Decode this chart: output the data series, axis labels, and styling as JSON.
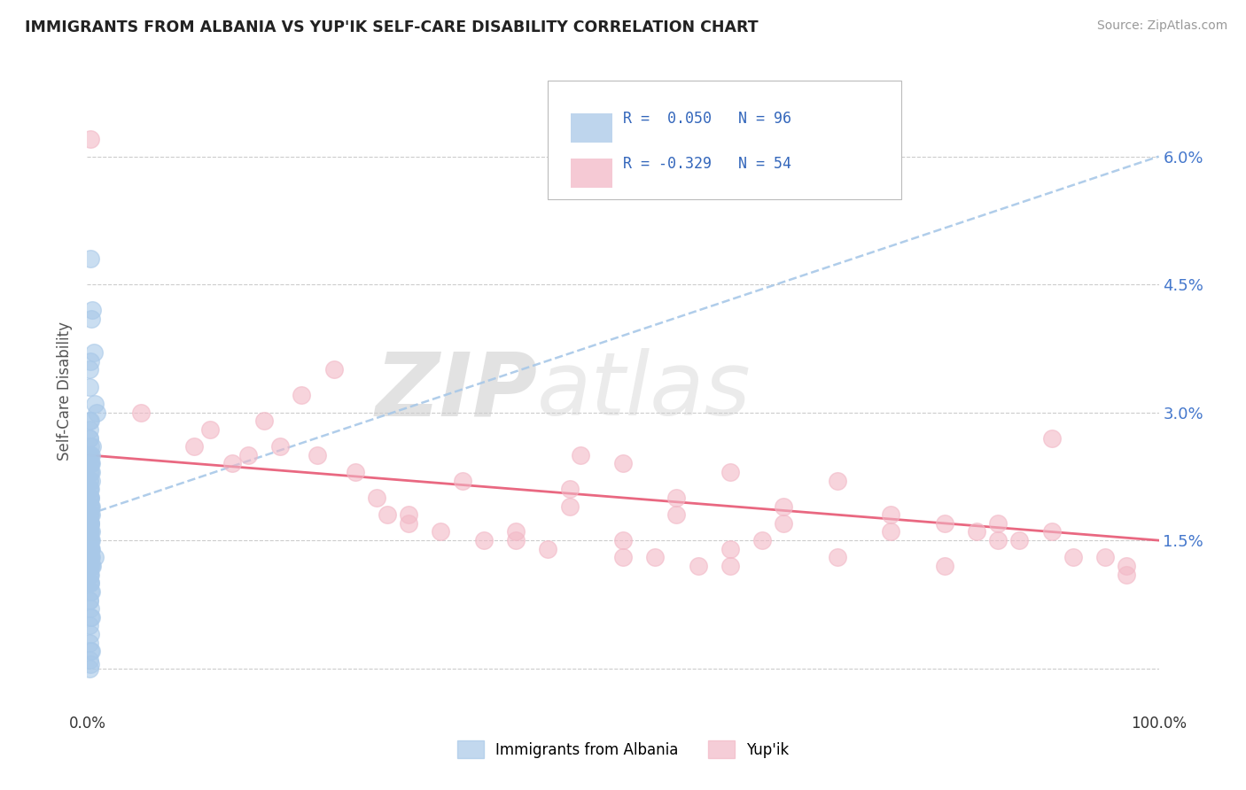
{
  "title": "IMMIGRANTS FROM ALBANIA VS YUP'IK SELF-CARE DISABILITY CORRELATION CHART",
  "source": "Source: ZipAtlas.com",
  "ylabel": "Self-Care Disability",
  "xlim": [
    0,
    100
  ],
  "ylim": [
    -0.5,
    7.0
  ],
  "yticks": [
    0,
    1.5,
    3.0,
    4.5,
    6.0
  ],
  "ytick_labels_right": [
    "",
    "1.5%",
    "3.0%",
    "4.5%",
    "6.0%"
  ],
  "ytick_labels_left": [
    "",
    "",
    "",
    "",
    ""
  ],
  "blue_color": "#a8c8e8",
  "pink_color": "#f2b8c6",
  "trend_blue_color": "#a8c8e8",
  "trend_pink_color": "#e8607a",
  "label1": "Immigrants from Albania",
  "label2": "Yup'ik",
  "watermark_zip": "ZIP",
  "watermark_atlas": "atlas",
  "legend_text1": "R =  0.050   N = 96",
  "legend_text2": "R = -0.329   N = 54",
  "blue_trend_start_y": 1.8,
  "blue_trend_end_y": 6.0,
  "pink_trend_start_y": 2.5,
  "pink_trend_end_y": 1.5,
  "blue_points_x": [
    0.3,
    0.5,
    0.4,
    0.6,
    0.3,
    0.2,
    0.7,
    0.9,
    0.3,
    0.2,
    0.2,
    0.2,
    0.3,
    0.5,
    0.4,
    0.2,
    0.3,
    0.3,
    0.4,
    0.2,
    0.2,
    0.3,
    0.4,
    0.2,
    0.2,
    0.4,
    0.3,
    0.2,
    0.2,
    0.3,
    0.2,
    0.2,
    0.3,
    0.3,
    0.2,
    0.3,
    0.4,
    0.2,
    0.2,
    0.3,
    0.4,
    0.2,
    0.3,
    0.2,
    0.3,
    0.3,
    0.4,
    0.2,
    0.2,
    0.2,
    0.3,
    0.4,
    0.3,
    0.2,
    0.2,
    0.3,
    0.4,
    0.3,
    0.2,
    0.3,
    0.2,
    0.4,
    0.2,
    0.3,
    0.3,
    0.2,
    0.3,
    0.2,
    0.4,
    0.3,
    0.2,
    0.2,
    0.3,
    0.2,
    0.3,
    0.3,
    0.4,
    0.2,
    0.2,
    0.3,
    0.4,
    0.3,
    0.2,
    0.3,
    0.2,
    0.3,
    0.4,
    0.2,
    0.3,
    0.2,
    0.5,
    0.7,
    0.2,
    0.2,
    0.3,
    0.3
  ],
  "blue_points_y": [
    4.8,
    4.2,
    4.1,
    3.7,
    3.6,
    3.3,
    3.1,
    3.0,
    2.9,
    2.8,
    2.7,
    2.7,
    2.6,
    2.6,
    2.5,
    2.5,
    2.5,
    2.4,
    2.4,
    2.4,
    2.3,
    2.3,
    2.3,
    2.2,
    2.2,
    2.2,
    2.1,
    2.1,
    2.1,
    2.0,
    2.0,
    2.0,
    2.0,
    1.9,
    1.9,
    1.9,
    1.9,
    1.8,
    1.8,
    1.8,
    1.8,
    1.7,
    1.7,
    1.7,
    1.7,
    1.7,
    1.6,
    1.6,
    1.6,
    1.6,
    1.5,
    1.5,
    1.5,
    1.5,
    1.5,
    1.4,
    1.4,
    1.4,
    1.4,
    1.4,
    1.3,
    1.3,
    1.3,
    1.3,
    1.3,
    1.2,
    1.2,
    1.2,
    1.2,
    1.1,
    1.1,
    1.1,
    1.0,
    1.0,
    1.0,
    0.9,
    0.9,
    0.8,
    0.8,
    0.7,
    0.6,
    0.6,
    0.5,
    0.4,
    0.3,
    0.2,
    0.2,
    0.1,
    0.05,
    0.0,
    1.2,
    1.3,
    3.5,
    2.9,
    2.4,
    1.6
  ],
  "pink_points_x": [
    0.3,
    11.5,
    5.0,
    16.5,
    10.0,
    20.0,
    18.0,
    15.0,
    23.0,
    21.5,
    13.5,
    25.0,
    27.0,
    28.0,
    30.0,
    33.0,
    37.0,
    40.0,
    43.0,
    46.0,
    50.0,
    53.0,
    57.0,
    60.0,
    63.0,
    50.0,
    60.0,
    70.0,
    80.0,
    90.0,
    45.0,
    55.0,
    65.0,
    75.0,
    85.0,
    30.0,
    40.0,
    50.0,
    60.0,
    70.0,
    80.0,
    90.0,
    35.0,
    45.0,
    55.0,
    65.0,
    75.0,
    85.0,
    95.0,
    97.0,
    83.0,
    87.0,
    92.0,
    97.0
  ],
  "pink_points_y": [
    6.2,
    2.8,
    3.0,
    2.9,
    2.6,
    3.2,
    2.6,
    2.5,
    3.5,
    2.5,
    2.4,
    2.3,
    2.0,
    1.8,
    1.8,
    1.6,
    1.5,
    1.5,
    1.4,
    2.5,
    1.3,
    1.3,
    1.2,
    1.2,
    1.5,
    2.4,
    2.3,
    2.2,
    1.7,
    1.6,
    1.9,
    1.8,
    1.7,
    1.6,
    1.5,
    1.7,
    1.6,
    1.5,
    1.4,
    1.3,
    1.2,
    2.7,
    2.2,
    2.1,
    2.0,
    1.9,
    1.8,
    1.7,
    1.3,
    1.2,
    1.6,
    1.5,
    1.3,
    1.1
  ]
}
